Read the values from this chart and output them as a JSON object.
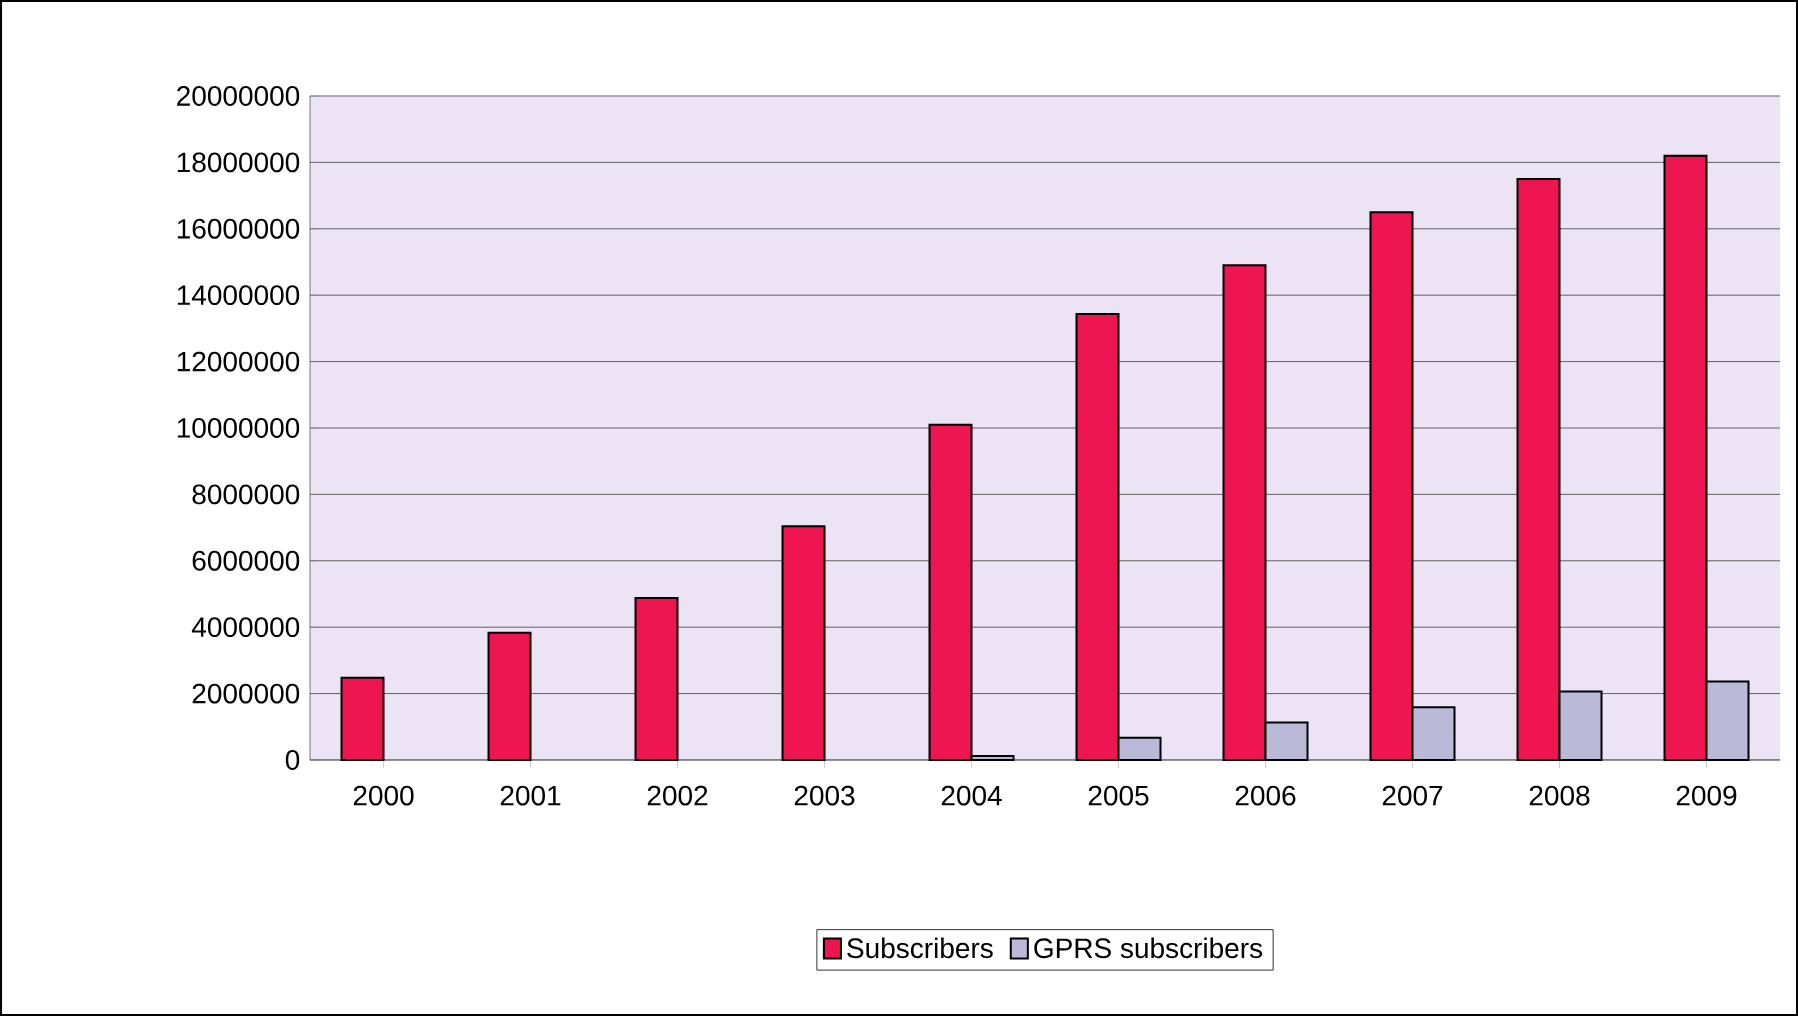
{
  "chart_data": {
    "type": "bar",
    "categories": [
      "2000",
      "2001",
      "2002",
      "2003",
      "2004",
      "2005",
      "2006",
      "2007",
      "2008",
      "2009"
    ],
    "series": [
      {
        "name": "Subscribers",
        "color": "#ed1651",
        "values": [
          2480000,
          3830000,
          4880000,
          7040000,
          10100000,
          13430000,
          14900000,
          16500000,
          17500000,
          18200000
        ]
      },
      {
        "name": "GPRS subscribers",
        "color": "#bbb9d8",
        "values": [
          null,
          null,
          null,
          null,
          120000,
          670000,
          1130000,
          1590000,
          2060000,
          2360000
        ]
      }
    ],
    "ylim": [
      0,
      20000000
    ],
    "yticks": [
      0,
      2000000,
      4000000,
      6000000,
      8000000,
      10000000,
      12000000,
      14000000,
      16000000,
      18000000,
      20000000
    ],
    "grid": "y",
    "legend": "bottom"
  }
}
